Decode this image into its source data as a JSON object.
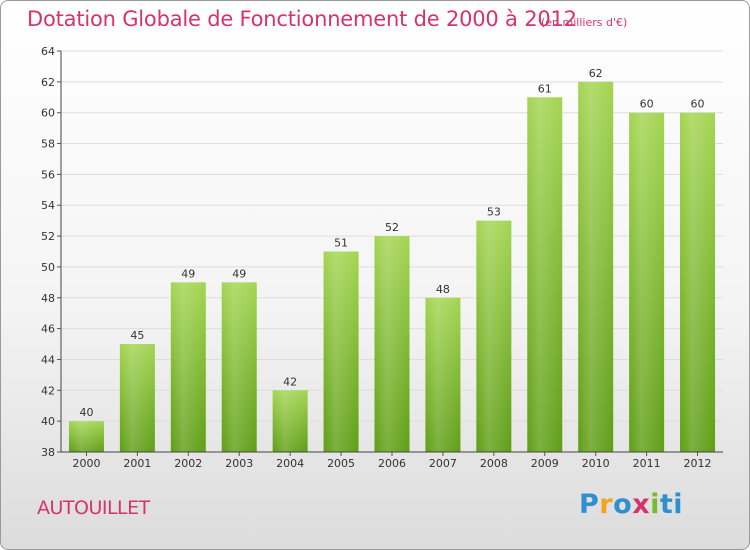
{
  "title": "Dotation Globale de Fonctionnement de 2000 à 2012",
  "subtitle": "(en milliers d'€)",
  "commune": "AUTOUILLET",
  "logo": [
    "P",
    "r",
    "o",
    "x",
    "i",
    "ti"
  ],
  "colors": {
    "title": "#d6336c",
    "bar_light": "#9fd04e",
    "bar_dark": "#5f9e16",
    "grid": "#dddddd"
  },
  "chart_data": {
    "type": "bar",
    "title": "Dotation Globale de Fonctionnement de 2000 à 2012",
    "subtitle": "(en milliers d'€)",
    "categories": [
      "2000",
      "2001",
      "2002",
      "2003",
      "2004",
      "2005",
      "2006",
      "2007",
      "2008",
      "2009",
      "2010",
      "2011",
      "2012"
    ],
    "values": [
      40,
      45,
      49,
      49,
      42,
      51,
      52,
      48,
      53,
      61,
      62,
      60,
      60
    ],
    "ylim": [
      38,
      64
    ],
    "yticks": [
      38,
      40,
      42,
      44,
      46,
      48,
      50,
      52,
      54,
      56,
      58,
      60,
      62,
      64
    ],
    "xlabel": "",
    "ylabel": "",
    "grid": true,
    "legend": "none"
  }
}
